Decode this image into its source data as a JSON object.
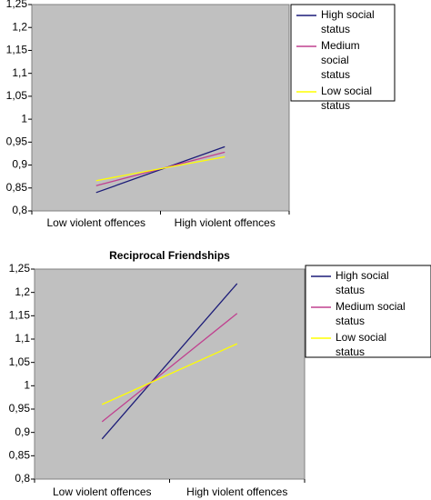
{
  "chart_data": [
    {
      "type": "line",
      "categories": [
        "Low violent offences",
        "High violent offences"
      ],
      "series": [
        {
          "name": "High social status",
          "color": "#1c1c78",
          "values": [
            0.84,
            0.94
          ]
        },
        {
          "name": "Medium social status",
          "color": "#c0408f",
          "values": [
            0.855,
            0.928
          ]
        },
        {
          "name": "Low social status",
          "color": "#ffff00",
          "values": [
            0.866,
            0.918
          ]
        }
      ],
      "ylim": [
        0.8,
        1.25
      ],
      "yticks": [
        {
          "value": 0.8,
          "label": "0,8"
        },
        {
          "value": 0.85,
          "label": "0,85"
        },
        {
          "value": 0.9,
          "label": "0,9"
        },
        {
          "value": 0.95,
          "label": "0,95"
        },
        1,
        {
          "value": 1.05,
          "label": "1,05"
        },
        {
          "value": 1.1,
          "label": "1,1"
        },
        {
          "value": 1.15,
          "label": "1,15"
        },
        {
          "value": 1.2,
          "label": "1,2"
        },
        {
          "value": 1.25,
          "label": "1,25"
        }
      ],
      "legend": "right"
    },
    {
      "type": "line",
      "title": "Reciprocal Friendships",
      "categories": [
        "Low violent offences",
        "High violent offences"
      ],
      "series": [
        {
          "name": "High social status",
          "color": "#1c1c78",
          "values": [
            0.886,
            1.219
          ]
        },
        {
          "name": "Medium social status",
          "color": "#c0408f",
          "values": [
            0.923,
            1.155
          ]
        },
        {
          "name": "Low social status",
          "color": "#ffff00",
          "values": [
            0.96,
            1.09
          ]
        }
      ],
      "ylim": [
        0.8,
        1.25
      ],
      "yticks": [
        {
          "value": 0.8,
          "label": "0,8"
        },
        {
          "value": 0.85,
          "label": "0,85"
        },
        {
          "value": 0.9,
          "label": "0,9"
        },
        {
          "value": 0.95,
          "label": "0,95"
        },
        1,
        {
          "value": 1.05,
          "label": "1,05"
        },
        {
          "value": 1.1,
          "label": "1,1"
        },
        {
          "value": 1.15,
          "label": "1,15"
        },
        {
          "value": 1.2,
          "label": "1,2"
        },
        {
          "value": 1.25,
          "label": "1,25"
        }
      ],
      "legend": "right"
    }
  ]
}
